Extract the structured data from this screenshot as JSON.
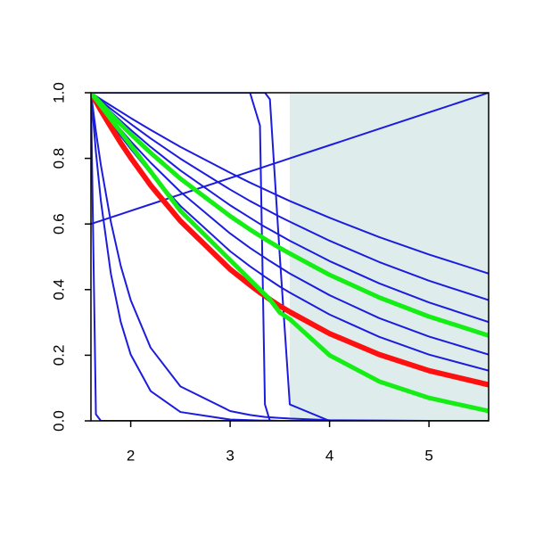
{
  "chart_data": {
    "type": "line",
    "x": [
      1.6,
      1.65,
      1.7,
      1.8,
      1.9,
      2.0,
      2.2,
      2.5,
      3.0,
      3.2,
      3.3,
      3.35,
      3.4,
      3.5,
      3.6,
      4.0,
      4.5,
      5.0,
      5.6
    ],
    "xlim": [
      1.6,
      5.6
    ],
    "ylim": [
      0,
      1
    ],
    "xticks": [
      2,
      3,
      4,
      5
    ],
    "yticks": [
      {
        "value": 0,
        "label": "0.0"
      },
      {
        "value": 0.2,
        "label": "0.2"
      },
      {
        "value": 0.4,
        "label": "0.4"
      },
      {
        "value": 0.6,
        "label": "0.6"
      },
      {
        "value": 0.8,
        "label": "0.8"
      },
      {
        "value": 1,
        "label": "1.0"
      }
    ],
    "shaded_region": {
      "xlim": [
        3.6,
        5.6
      ],
      "color": "#dfecec"
    },
    "series": [
      {
        "color": "#1c1cdc",
        "line_width": 2,
        "values": [
          1,
          0.99,
          0.98,
          0.961,
          0.942,
          0.923,
          0.887,
          0.835,
          0.756,
          0.726,
          0.712,
          0.705,
          0.698,
          0.684,
          0.67,
          0.619,
          0.56,
          0.507,
          0.449
        ]
      },
      {
        "color": "#1c1cdc",
        "line_width": 2,
        "values": [
          1,
          0.988,
          0.975,
          0.951,
          0.928,
          0.905,
          0.861,
          0.799,
          0.705,
          0.67,
          0.654,
          0.646,
          0.638,
          0.622,
          0.607,
          0.549,
          0.484,
          0.427,
          0.368
        ]
      },
      {
        "color": "#1c1cdc",
        "line_width": 2,
        "values": [
          1,
          0.985,
          0.97,
          0.942,
          0.914,
          0.887,
          0.835,
          0.763,
          0.657,
          0.619,
          0.6,
          0.591,
          0.583,
          0.566,
          0.549,
          0.487,
          0.419,
          0.361,
          0.301
        ]
      },
      {
        "color": "#1c1cdc",
        "line_width": 2,
        "values": [
          1,
          0.98,
          0.961,
          0.923,
          0.887,
          0.852,
          0.787,
          0.698,
          0.571,
          0.527,
          0.507,
          0.497,
          0.487,
          0.468,
          0.449,
          0.383,
          0.313,
          0.257,
          0.202
        ]
      },
      {
        "color": "#1c1cdc",
        "line_width": 2,
        "values": [
          1,
          0.977,
          0.954,
          0.91,
          0.868,
          0.829,
          0.754,
          0.655,
          0.517,
          0.471,
          0.45,
          0.439,
          0.429,
          0.409,
          0.391,
          0.324,
          0.256,
          0.202,
          0.153
        ]
      },
      {
        "color": "#1c1cdc",
        "line_width": 2,
        "values": [
          1,
          0.819,
          0.67,
          0.449,
          0.301,
          0.202,
          0.091,
          0.027,
          0.004,
          0.002,
          0.001,
          0.001,
          0.001,
          0,
          0,
          0,
          0,
          0,
          0
        ]
      },
      {
        "color": "#1c1cdc",
        "line_width": 2,
        "values": [
          1,
          0.882,
          0.779,
          0.607,
          0.472,
          0.368,
          0.223,
          0.105,
          0.03,
          0.018,
          0.014,
          0.012,
          0.011,
          0.009,
          0.007,
          0.002,
          0.001,
          0,
          0
        ]
      },
      {
        "color": "#1c1cdc",
        "line_width": 2,
        "values": [
          1,
          0.02,
          0,
          0,
          0,
          0,
          0,
          0,
          0,
          0,
          0,
          0,
          0,
          0,
          0,
          0,
          0,
          0,
          0
        ]
      },
      {
        "color": "#1c1cdc",
        "line_width": 2,
        "values": [
          1,
          1,
          1,
          1,
          1,
          1,
          1,
          1,
          1,
          1,
          0.9,
          0.05,
          0,
          0,
          0,
          0,
          0,
          0,
          0
        ]
      },
      {
        "color": "#1c1cdc",
        "line_width": 2,
        "values": [
          1,
          1,
          1,
          1,
          1,
          1,
          1,
          1,
          1,
          1,
          1,
          1,
          0.98,
          0.5,
          0.05,
          0,
          0,
          0,
          0
        ]
      },
      {
        "color": "#1c1cdc",
        "line_width": 2,
        "values": [
          0.6,
          0.605,
          0.61,
          0.62,
          0.63,
          0.64,
          0.66,
          0.69,
          0.74,
          0.76,
          0.77,
          0.775,
          0.78,
          0.79,
          0.8,
          0.84,
          0.89,
          0.94,
          1
        ]
      },
      {
        "color": "#ff1010",
        "line_width": 6,
        "values": [
          1,
          0.973,
          0.946,
          0.896,
          0.847,
          0.802,
          0.718,
          0.609,
          0.462,
          0.414,
          0.391,
          0.381,
          0.37,
          0.35,
          0.332,
          0.266,
          0.202,
          0.153,
          0.11
        ]
      },
      {
        "color": "#14ee14",
        "line_width": 5,
        "values": [
          1,
          0.983,
          0.967,
          0.935,
          0.904,
          0.874,
          0.817,
          0.738,
          0.624,
          0.583,
          0.564,
          0.554,
          0.545,
          0.527,
          0.51,
          0.445,
          0.376,
          0.318,
          0.26
        ]
      },
      {
        "color": "#14ee14",
        "line_width": 5,
        "values": [
          1,
          0.98,
          0.96,
          0.92,
          0.88,
          0.84,
          0.76,
          0.64,
          0.49,
          0.43,
          0.4,
          0.385,
          0.37,
          0.33,
          0.31,
          0.2,
          0.12,
          0.07,
          0.03
        ]
      }
    ]
  }
}
